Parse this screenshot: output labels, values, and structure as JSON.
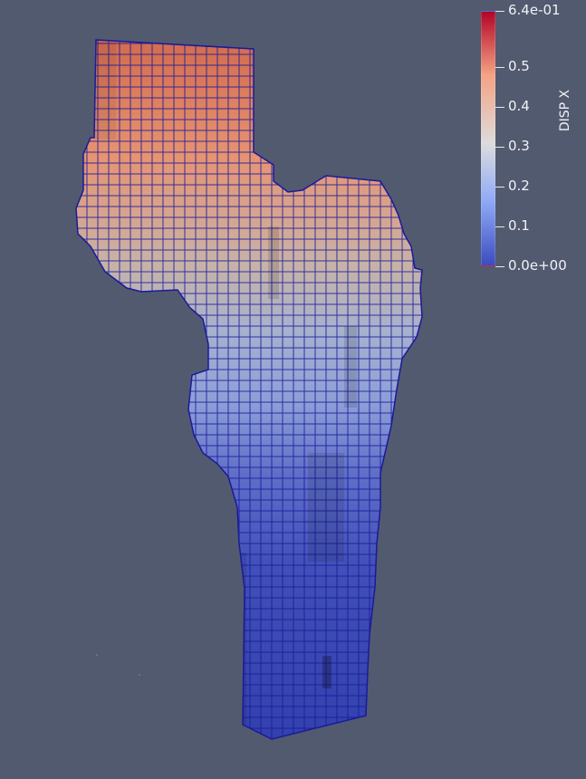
{
  "view": {
    "background": "#525a70",
    "edge_color": "#1a1a9a"
  },
  "colorbar": {
    "title": "DISP X",
    "colormap": "cool-to-warm",
    "color_low": "#3b4cc0",
    "color_mid": "#dddcdc",
    "color_high": "#b40426",
    "ticks": [
      {
        "label": "6.4e-01",
        "value": 0.64
      },
      {
        "label": "0.5",
        "value": 0.5
      },
      {
        "label": "0.4",
        "value": 0.4
      },
      {
        "label": "0.3",
        "value": 0.3
      },
      {
        "label": "0.2",
        "value": 0.2
      },
      {
        "label": "0.1",
        "value": 0.1
      },
      {
        "label": "0.0e+00",
        "value": 0.0
      }
    ],
    "range": [
      0.0,
      0.64
    ]
  }
}
